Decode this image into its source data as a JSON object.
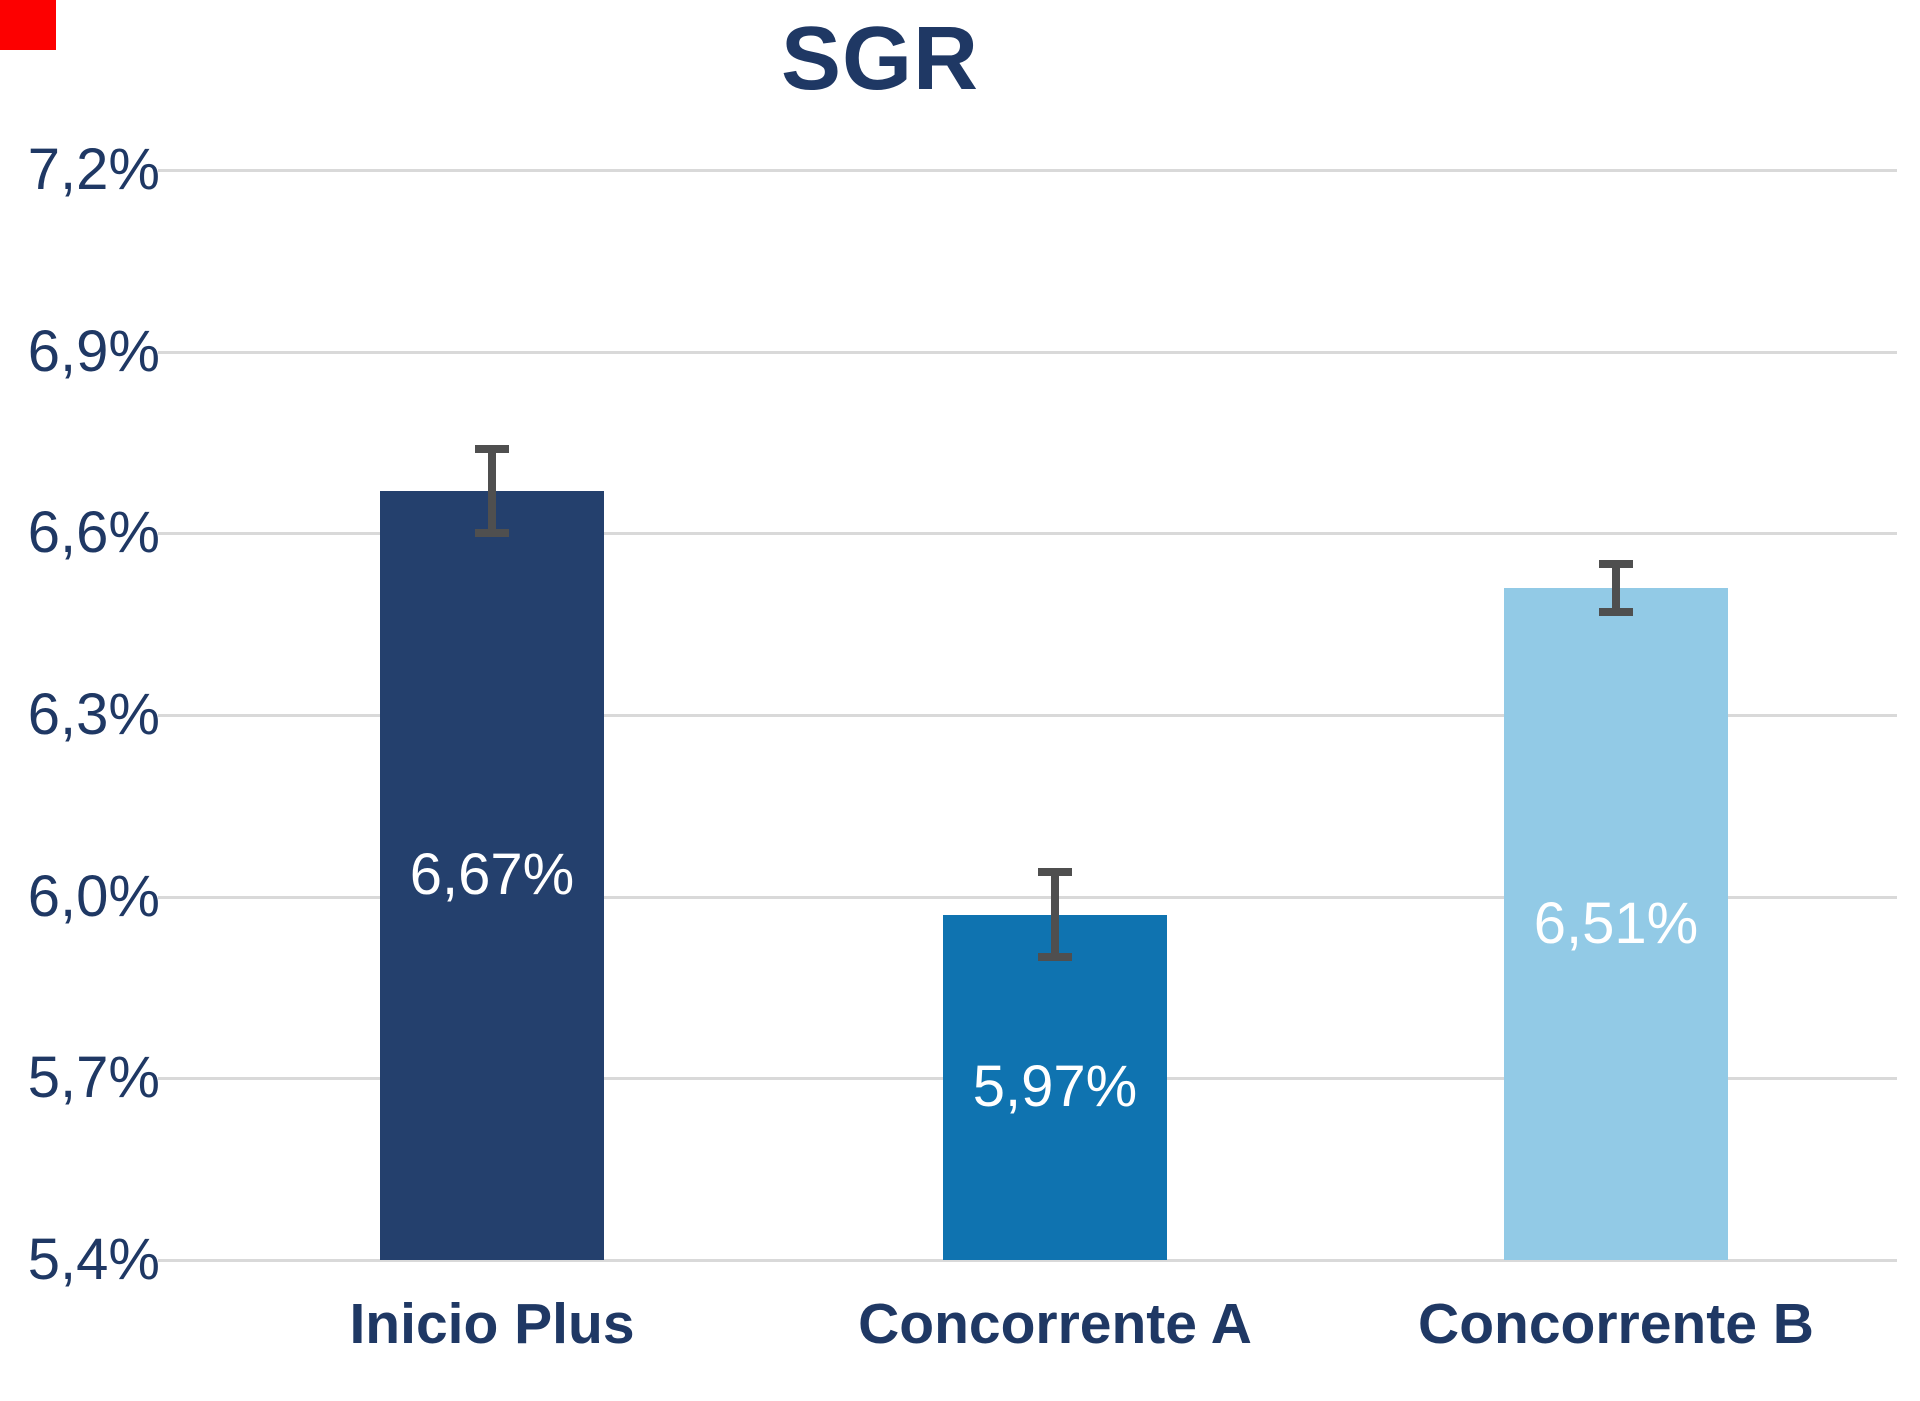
{
  "chart_data": {
    "type": "bar",
    "title": "SGR",
    "categories": [
      "Inicio Plus",
      "Concorrente A",
      "Concorrente B"
    ],
    "values": [
      6.67,
      5.97,
      6.51
    ],
    "value_labels": [
      "6,67%",
      "5,97%",
      "6,51%"
    ],
    "errors": [
      0.07,
      0.07,
      0.04
    ],
    "bar_colors": [
      "#24406D",
      "#0F73B0",
      "#92CAE6"
    ],
    "ylim": [
      5.4,
      7.2
    ],
    "yticks": {
      "values": [
        5.4,
        5.7,
        6.0,
        6.3,
        6.6,
        6.9,
        7.2
      ],
      "labels": [
        "5,4%",
        "5,7%",
        "6,0%",
        "6,3%",
        "6,6%",
        "6,9%",
        "7,2%"
      ]
    },
    "grid": true,
    "legend_position": "none",
    "xlabel": "",
    "ylabel": ""
  },
  "colors": {
    "title_text": "#1F3864",
    "axis_text": "#1F3864",
    "gridline": "#D9D9D9",
    "error_bar": "#4F4F4F",
    "data_label_text": "#FFFFFF",
    "background": "#FFFFFF",
    "corner_mark": "#FD0000"
  }
}
